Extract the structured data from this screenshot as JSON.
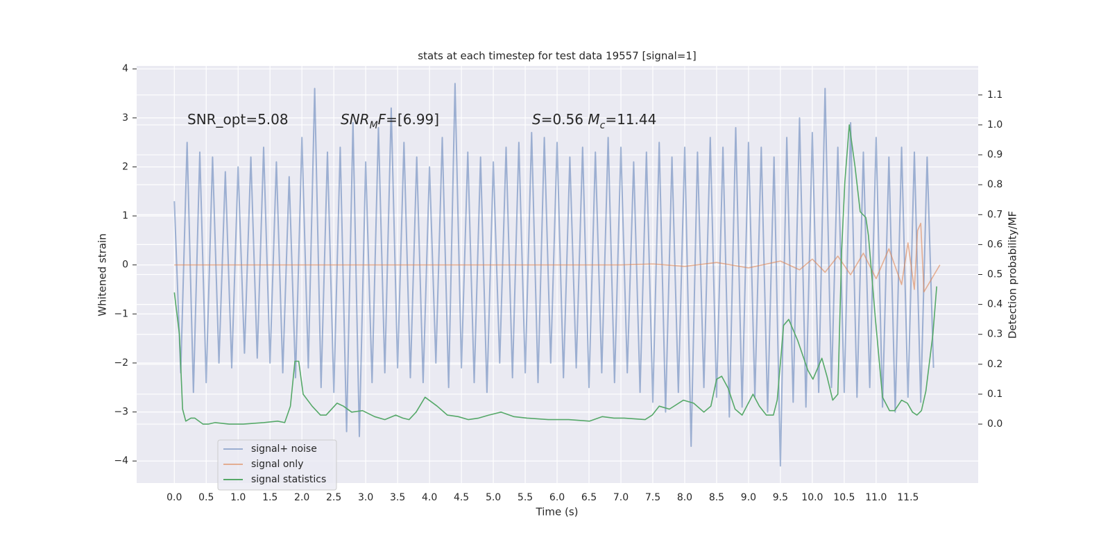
{
  "chart_data": {
    "type": "line",
    "title": "stats at each timestep for test data 19557 [signal=1]",
    "xlabel": "Time (s)",
    "ylabel": "Whitened strain",
    "y2label": "Detection probability/MF",
    "xlim": [
      -0.59,
      12.6
    ],
    "ylim": [
      -4.45,
      4.06
    ],
    "y2lim": [
      -0.197,
      1.197
    ],
    "xticks": [
      {
        "value": 0,
        "label": "0.0"
      },
      0.5,
      {
        "value": 1,
        "label": "1.0"
      },
      1.5,
      {
        "value": 2,
        "label": "2.0"
      },
      2.5,
      {
        "value": 3,
        "label": "3.0"
      },
      3.5,
      {
        "value": 4,
        "label": "4.0"
      },
      4.5,
      {
        "value": 5,
        "label": "5.0"
      },
      5.5,
      {
        "value": 6,
        "label": "6.0"
      },
      6.5,
      {
        "value": 7,
        "label": "7.0"
      },
      7.5,
      {
        "value": 8,
        "label": "8.0"
      },
      8.5,
      {
        "value": 9,
        "label": "9.0"
      },
      9.5,
      {
        "value": 10,
        "label": "10.0"
      },
      10.5,
      {
        "value": 11,
        "label": "11.0"
      },
      11.5
    ],
    "yticks": [
      {
        "value": -4,
        "label": "−4"
      },
      {
        "value": -3,
        "label": "−3"
      },
      {
        "value": -2,
        "label": "−2"
      },
      {
        "value": -1,
        "label": "−1"
      },
      0,
      1,
      2,
      3,
      4
    ],
    "y2ticks": [
      {
        "value": 0,
        "label": "0.0"
      },
      0.1,
      0.2,
      0.3,
      0.4,
      0.5,
      0.6,
      0.7,
      0.8,
      0.9,
      {
        "value": 1,
        "label": "1.0"
      },
      1.1
    ],
    "grid": true,
    "legend": "lower left",
    "annotations": [
      [
        {
          "text": "SNR_opt=5.08",
          "style": "normal"
        }
      ],
      [
        {
          "text": "SNR",
          "style": "italic"
        },
        {
          "text": "M",
          "style": "sub"
        },
        {
          "text": "F",
          "style": "italic"
        },
        {
          "text": "=[6.99]",
          "style": "normal"
        }
      ],
      [
        {
          "text": "S",
          "style": "italic"
        },
        {
          "text": "=0.56   ",
          "style": "normal"
        },
        {
          "text": "M",
          "style": "italic"
        },
        {
          "text": "c",
          "style": "sub"
        },
        {
          "text": "=11.44",
          "style": "normal"
        }
      ]
    ],
    "series": [
      {
        "name": "signal+ noise",
        "color": "#4c72b0",
        "opacity": 0.5,
        "x": [
          0,
          0.1,
          0.2,
          0.3,
          0.4,
          0.5,
          0.6,
          0.7,
          0.8,
          0.9,
          1,
          1.1,
          1.2,
          1.3,
          1.4,
          1.5,
          1.6,
          1.7,
          1.8,
          1.9,
          2,
          2.1,
          2.2,
          2.3,
          2.4,
          2.5,
          2.6,
          2.7,
          2.8,
          2.9,
          3,
          3.1,
          3.2,
          3.3,
          3.4,
          3.5,
          3.6,
          3.7,
          3.8,
          3.9,
          4,
          4.1,
          4.2,
          4.3,
          4.4,
          4.5,
          4.6,
          4.7,
          4.8,
          4.9,
          5,
          5.1,
          5.2,
          5.3,
          5.4,
          5.5,
          5.6,
          5.7,
          5.8,
          5.9,
          6,
          6.1,
          6.2,
          6.3,
          6.4,
          6.5,
          6.6,
          6.7,
          6.8,
          6.9,
          7,
          7.1,
          7.2,
          7.3,
          7.4,
          7.5,
          7.6,
          7.7,
          7.8,
          7.9,
          8,
          8.1,
          8.2,
          8.3,
          8.4,
          8.5,
          8.6,
          8.7,
          8.8,
          8.9,
          9,
          9.1,
          9.2,
          9.3,
          9.4,
          9.5,
          9.6,
          9.7,
          9.8,
          9.9,
          10,
          10.1,
          10.2,
          10.3,
          10.4,
          10.5,
          10.6,
          10.7,
          10.8,
          10.9,
          11,
          11.1,
          11.2,
          11.3,
          11.4,
          11.5,
          11.6,
          11.7,
          11.8,
          11.9
        ],
        "values": [
          1.3,
          -2.2,
          2.5,
          -2.6,
          2.3,
          -2.4,
          2.2,
          -2.0,
          1.9,
          -2.1,
          2.0,
          -1.8,
          2.2,
          -1.9,
          2.4,
          -2.0,
          2.1,
          -2.2,
          1.8,
          -2.3,
          2.6,
          -2.1,
          3.6,
          -2.5,
          2.3,
          -2.6,
          2.4,
          -3.4,
          2.9,
          -3.5,
          2.1,
          -2.4,
          2.8,
          -2.2,
          3.2,
          -2.1,
          2.5,
          -2.3,
          2.2,
          -2.4,
          2.0,
          -2.0,
          2.6,
          -2.5,
          3.7,
          -2.1,
          2.3,
          -2.4,
          2.2,
          -2.6,
          2.1,
          -2.0,
          2.4,
          -2.3,
          2.5,
          -2.2,
          2.7,
          -2.4,
          2.6,
          -2.0,
          2.5,
          -2.3,
          2.2,
          -2.1,
          2.4,
          -2.5,
          2.3,
          -2.2,
          2.6,
          -2.4,
          2.4,
          -2.2,
          2.1,
          -2.6,
          2.3,
          -2.8,
          2.5,
          -3.0,
          2.2,
          -2.6,
          2.4,
          -3.7,
          2.3,
          -2.5,
          2.6,
          -2.7,
          2.4,
          -3.1,
          2.8,
          -2.9,
          2.5,
          -2.7,
          2.4,
          -3.0,
          2.2,
          -4.1,
          2.6,
          -2.8,
          3.0,
          -2.9,
          2.7,
          -2.6,
          3.6,
          -2.5,
          2.4,
          -2.6,
          2.9,
          -2.7,
          2.3,
          -2.5,
          2.6,
          -2.9,
          2.2,
          -3.0,
          2.4,
          -2.7,
          2.3,
          -2.8,
          2.2,
          -2.1
        ]
      },
      {
        "name": "signal only",
        "color": "#dd8452",
        "opacity": 0.6,
        "x": [
          0,
          7.0,
          7.5,
          8.0,
          8.5,
          9.0,
          9.5,
          9.8,
          10.0,
          10.2,
          10.4,
          10.6,
          10.8,
          11.0,
          11.2,
          11.4,
          11.5,
          11.6,
          11.65,
          11.7,
          11.75,
          12.0
        ],
        "values": [
          0,
          0,
          0.02,
          -0.03,
          0.05,
          -0.06,
          0.08,
          -0.1,
          0.12,
          -0.15,
          0.18,
          -0.2,
          0.24,
          -0.28,
          0.33,
          -0.4,
          0.45,
          -0.5,
          0.7,
          0.85,
          -0.55,
          0
        ]
      },
      {
        "name": "signal statistics",
        "color": "#55a868",
        "opacity": 1,
        "axis": "y2",
        "x": [
          0,
          0.08,
          0.13,
          0.18,
          0.26,
          0.32,
          0.45,
          0.53,
          0.64,
          0.86,
          1.08,
          1.4,
          1.62,
          1.73,
          1.82,
          1.89,
          1.95,
          2.02,
          2.16,
          2.29,
          2.38,
          2.55,
          2.65,
          2.78,
          2.95,
          3.14,
          3.3,
          3.47,
          3.58,
          3.68,
          3.79,
          3.93,
          4.12,
          4.28,
          4.45,
          4.61,
          4.77,
          4.93,
          5.12,
          5.32,
          5.53,
          5.86,
          6.18,
          6.51,
          6.71,
          6.89,
          7.05,
          7.38,
          7.49,
          7.6,
          7.76,
          7.98,
          8.14,
          8.3,
          8.41,
          8.5,
          8.58,
          8.68,
          8.79,
          8.9,
          9.07,
          9.17,
          9.28,
          9.39,
          9.45,
          9.55,
          9.63,
          9.77,
          9.93,
          10.01,
          10.15,
          10.23,
          10.32,
          10.4,
          10.46,
          10.51,
          10.58,
          10.67,
          10.75,
          10.84,
          10.88,
          10.99,
          11.1,
          11.21,
          11.29,
          11.4,
          11.49,
          11.57,
          11.64,
          11.71,
          11.78,
          11.89,
          11.95
        ],
        "values": [
          0.44,
          0.3,
          0.05,
          0.01,
          0.02,
          0.02,
          0.0,
          0.0,
          0.005,
          0.0,
          0.0,
          0.005,
          0.01,
          0.005,
          0.06,
          0.21,
          0.21,
          0.1,
          0.06,
          0.03,
          0.03,
          0.07,
          0.06,
          0.04,
          0.045,
          0.025,
          0.015,
          0.03,
          0.02,
          0.015,
          0.04,
          0.09,
          0.06,
          0.03,
          0.025,
          0.015,
          0.02,
          0.03,
          0.04,
          0.025,
          0.02,
          0.015,
          0.015,
          0.01,
          0.025,
          0.02,
          0.02,
          0.015,
          0.03,
          0.06,
          0.05,
          0.08,
          0.07,
          0.04,
          0.06,
          0.15,
          0.16,
          0.12,
          0.05,
          0.03,
          0.1,
          0.06,
          0.03,
          0.03,
          0.08,
          0.33,
          0.35,
          0.28,
          0.18,
          0.15,
          0.22,
          0.16,
          0.08,
          0.1,
          0.58,
          0.81,
          1.0,
          0.86,
          0.71,
          0.69,
          0.63,
          0.35,
          0.09,
          0.045,
          0.045,
          0.08,
          0.07,
          0.04,
          0.03,
          0.045,
          0.11,
          0.3,
          0.46
        ]
      }
    ]
  }
}
